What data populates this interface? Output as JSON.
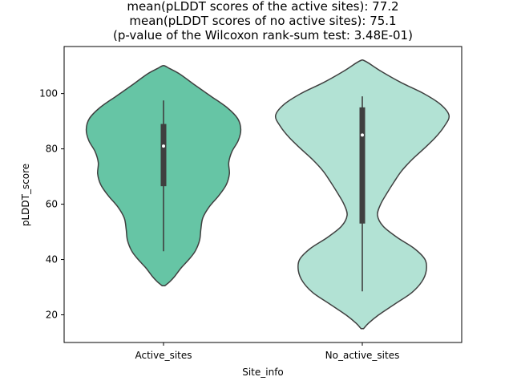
{
  "chart_data": {
    "type": "violin",
    "title_lines": [
      "mean(pLDDT scores of the active sites): 77.2",
      "mean(pLDDT scores of no active sites): 75.1",
      "(p-value of the Wilcoxon rank-sum test: 3.48E-01)"
    ],
    "xlabel": "Site_info",
    "ylabel": "pLDDT_score",
    "ylim": [
      10,
      117
    ],
    "yticks": [
      20,
      40,
      60,
      80,
      100
    ],
    "categories": [
      "Active_sites",
      "No_active_sites"
    ],
    "grid": false,
    "series": [
      {
        "category": "Active_sites",
        "color": "#66c5a5",
        "whisker_low": 43,
        "q1": 66.5,
        "median": 81,
        "q3": 89,
        "whisker_high": 97.5,
        "violin_range": [
          30.5,
          110
        ],
        "density": [
          [
            30.5,
            0.02
          ],
          [
            32,
            0.1
          ],
          [
            34,
            0.18
          ],
          [
            37,
            0.28
          ],
          [
            40,
            0.4
          ],
          [
            43,
            0.5
          ],
          [
            47,
            0.57
          ],
          [
            51,
            0.59
          ],
          [
            55,
            0.62
          ],
          [
            59,
            0.72
          ],
          [
            63,
            0.87
          ],
          [
            67,
            0.99
          ],
          [
            71,
            1.04
          ],
          [
            75,
            1.03
          ],
          [
            79,
            1.08
          ],
          [
            83,
            1.18
          ],
          [
            87,
            1.22
          ],
          [
            91,
            1.17
          ],
          [
            95,
            1.0
          ],
          [
            99,
            0.75
          ],
          [
            103,
            0.5
          ],
          [
            107,
            0.26
          ],
          [
            109,
            0.1
          ],
          [
            110,
            0.02
          ]
        ]
      },
      {
        "category": "No_active_sites",
        "color": "#b2e2d4",
        "whisker_low": 28.5,
        "q1": 53,
        "median": 85,
        "q3": 95,
        "whisker_high": 99,
        "violin_range": [
          15,
          112
        ],
        "density": [
          [
            15,
            0.02
          ],
          [
            17,
            0.1
          ],
          [
            20,
            0.26
          ],
          [
            24,
            0.52
          ],
          [
            28,
            0.78
          ],
          [
            32,
            0.94
          ],
          [
            36,
            1.01
          ],
          [
            40,
            0.99
          ],
          [
            44,
            0.82
          ],
          [
            48,
            0.55
          ],
          [
            52,
            0.33
          ],
          [
            56,
            0.24
          ],
          [
            60,
            0.29
          ],
          [
            64,
            0.39
          ],
          [
            68,
            0.5
          ],
          [
            72,
            0.62
          ],
          [
            76,
            0.78
          ],
          [
            80,
            0.97
          ],
          [
            84,
            1.15
          ],
          [
            88,
            1.29
          ],
          [
            92,
            1.37
          ],
          [
            96,
            1.24
          ],
          [
            100,
            0.97
          ],
          [
            104,
            0.61
          ],
          [
            108,
            0.3
          ],
          [
            111,
            0.1
          ],
          [
            112,
            0.02
          ]
        ]
      }
    ]
  }
}
